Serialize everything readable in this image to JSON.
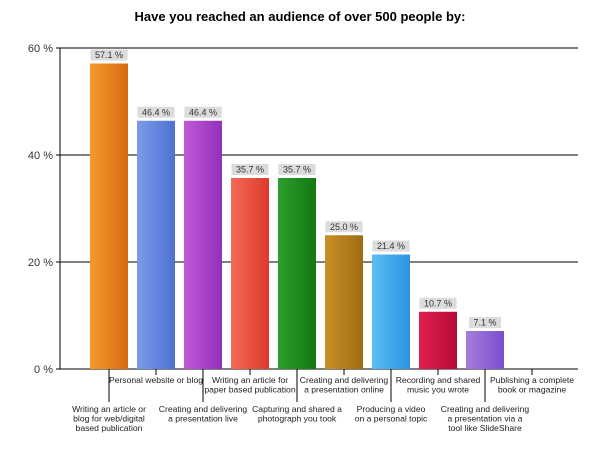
{
  "chart_data": {
    "type": "bar",
    "title": "Have you reached an audience of over 500 people by:",
    "xlabel": "",
    "ylabel": "",
    "ylim": [
      0,
      60
    ],
    "yticks": [
      0,
      20,
      40,
      60
    ],
    "ytick_labels": [
      "0 %",
      "20 %",
      "40 %",
      "60 %"
    ],
    "grid": "horizontal",
    "legend": "none",
    "categories": [
      [
        "Writing an article or",
        "blog for web/digital",
        "based publication"
      ],
      [
        "Personal website or blog"
      ],
      [
        "Creating and delivering",
        "a presentation live"
      ],
      [
        "Writing an article for",
        "paper based publication"
      ],
      [
        "Capturing and shared a",
        "photograph you took"
      ],
      [
        "Creating and delivering",
        "a presentation online"
      ],
      [
        "Producing a video",
        "on a personal topic"
      ],
      [
        "Recording and shared",
        "music you wrote"
      ],
      [
        "Creating and delivering",
        "a presentation via a",
        "tool like SlideShare"
      ],
      [
        "Publishing a complete",
        "book or magazine"
      ]
    ],
    "values": [
      57.1,
      46.4,
      46.4,
      35.7,
      35.7,
      25.0,
      21.4,
      10.7,
      7.1,
      0
    ],
    "value_labels": [
      "57.1 %",
      "46.4 %",
      "46.4 %",
      "35.7 %",
      "35.7 %",
      "25.0 %",
      "21.4 %",
      "10.7 %",
      "7.1 %",
      ""
    ],
    "colors": [
      [
        "#f59a2e",
        "#d76a10"
      ],
      [
        "#7b9be9",
        "#4f70d0"
      ],
      [
        "#c15ad8",
        "#9230b8"
      ],
      [
        "#f46a58",
        "#dc3a2c"
      ],
      [
        "#2e9d2e",
        "#127812"
      ],
      [
        "#c99028",
        "#9e6c12"
      ],
      [
        "#5cbcf4",
        "#2a95e0"
      ],
      [
        "#e0204e",
        "#b80a36"
      ],
      [
        "#a57ddf",
        "#7a4fcc"
      ],
      [
        "#cccccc",
        "#aaaaaa"
      ]
    ]
  }
}
